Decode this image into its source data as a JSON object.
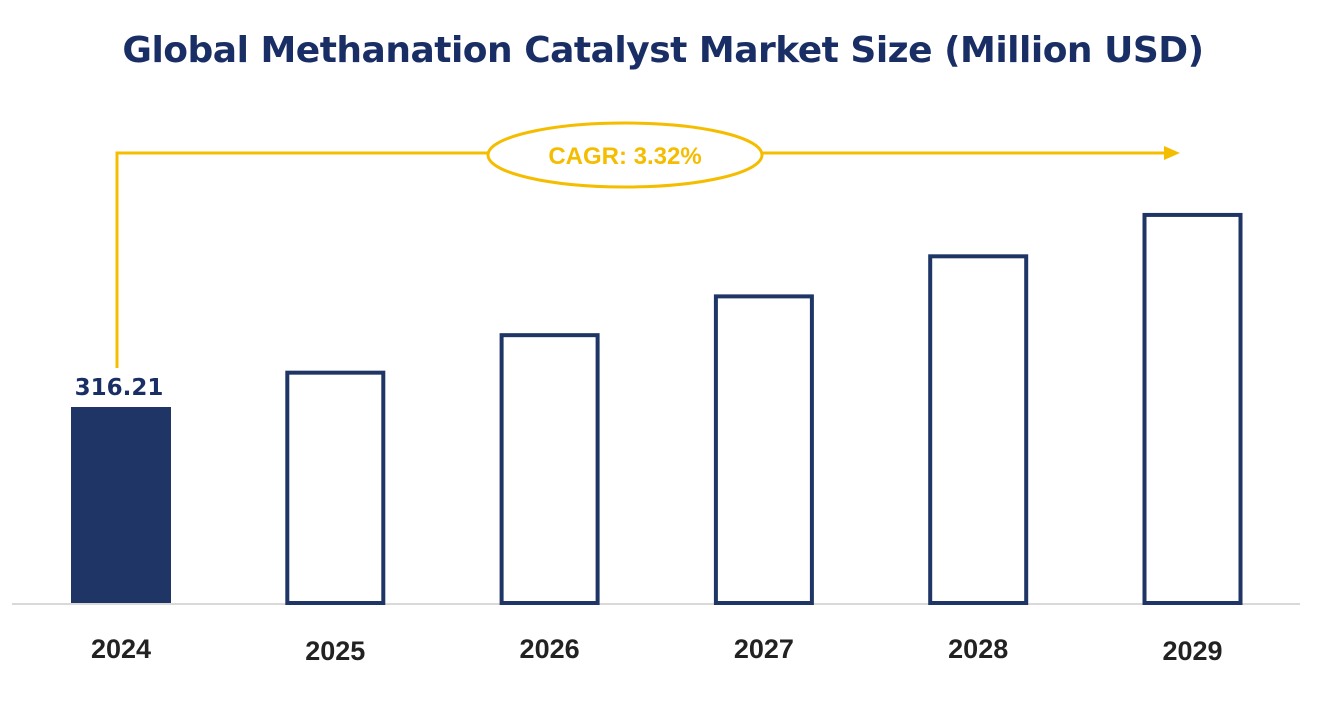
{
  "chart_data": {
    "type": "bar",
    "title": "Global Methanation Catalyst Market Size (Million USD)",
    "categories": [
      "2024",
      "2025",
      "2026",
      "2027",
      "2028",
      "2029"
    ],
    "values": [
      316.21,
      326.71,
      337.55,
      348.76,
      360.34,
      372.3
    ],
    "data_labels": {
      "2024": "316.21"
    },
    "xlabel": "",
    "ylabel": "",
    "y_axis_visible": false,
    "grid": false,
    "annotation": "CAGR: 3.32%",
    "colors": {
      "filled_bar": "#1f3566",
      "outline_bar": "#1f3566",
      "cagr": "#f5bd00",
      "title": "#1a2e66"
    }
  }
}
